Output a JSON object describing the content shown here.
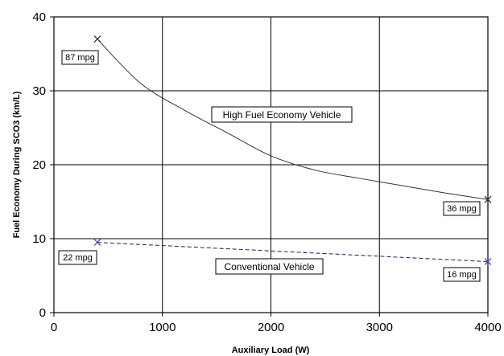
{
  "chart_data": {
    "type": "line",
    "title": "",
    "xlabel": "Auxiliary Load (W)",
    "ylabel": "Fuel Economy During SCO3 (km/L)",
    "xlim": [
      0,
      4000
    ],
    "ylim": [
      0,
      40
    ],
    "x_ticks": [
      0,
      1000,
      2000,
      3000,
      4000
    ],
    "y_ticks": [
      0,
      10,
      20,
      30,
      40
    ],
    "grid": true,
    "legend": "none",
    "series": [
      {
        "label": "High Fuel Economy Vehicle",
        "color": "#333333",
        "line_style": "solid",
        "marker": "x",
        "marker_color": "#333333",
        "x": [
          400,
          800,
          1200,
          1600,
          2000,
          2400,
          2800,
          3200,
          3600,
          4000
        ],
        "y": [
          37.0,
          31.0,
          27.4,
          24.3,
          21.2,
          19.3,
          18.2,
          17.2,
          16.2,
          15.3
        ],
        "marker_at": [
          0,
          9
        ],
        "callouts": [
          "87 mpg",
          "36 mpg"
        ]
      },
      {
        "label": "Conventional Vehicle",
        "color": "#1a1a66",
        "line_style": "dashed",
        "marker": "x",
        "marker_color": "#5050c8",
        "x": [
          400,
          4000
        ],
        "y": [
          9.5,
          6.9
        ],
        "marker_at": [
          0,
          1
        ],
        "callouts": [
          "22 mpg",
          "16 mpg"
        ]
      }
    ]
  }
}
